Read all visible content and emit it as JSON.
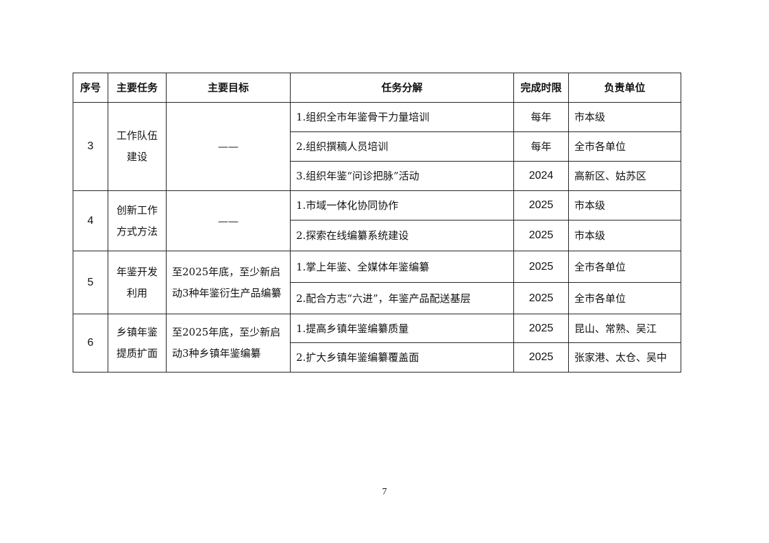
{
  "table": {
    "headers": [
      "序号",
      "主要任务",
      "主要目标",
      "任务分解",
      "完成时限",
      "负责单位"
    ],
    "groups": [
      {
        "no": "3",
        "task": "工作队伍建设",
        "target": "——",
        "items": [
          {
            "sub": "1.组织全市年鉴骨干力量培训",
            "deadline": "每年",
            "unit": "市本级"
          },
          {
            "sub": "2.组织撰稿人员培训",
            "deadline": "每年",
            "unit": "全市各单位"
          },
          {
            "sub": "3.组织年鉴“问诊把脉”活动",
            "deadline": "2024",
            "unit": "高新区、姑苏区"
          }
        ]
      },
      {
        "no": "4",
        "task": "创新工作方式方法",
        "target": "——",
        "items": [
          {
            "sub": "1.市域一体化协同协作",
            "deadline": "2025",
            "unit": "市本级"
          },
          {
            "sub": "2.探索在线编纂系统建设",
            "deadline": "2025",
            "unit": "市本级"
          }
        ]
      },
      {
        "no": "5",
        "task": "年鉴开发利用",
        "target": "至2025年底，至少新启动3种年鉴衍生产品编纂",
        "items": [
          {
            "sub": "1.掌上年鉴、全媒体年鉴编纂",
            "deadline": "2025",
            "unit": "全市各单位"
          },
          {
            "sub": "2.配合方志“六进”，年鉴产品配送基层",
            "deadline": "2025",
            "unit": "全市各单位"
          }
        ]
      },
      {
        "no": "6",
        "task": "乡镇年鉴提质扩面",
        "target": "至2025年底，至少新启动3种乡镇年鉴编纂",
        "items": [
          {
            "sub": "1.提高乡镇年鉴编纂质量",
            "deadline": "2025",
            "unit": "昆山、常熟、吴江"
          },
          {
            "sub": "2.扩大乡镇年鉴编纂覆盖面",
            "deadline": "2025",
            "unit": "张家港、太仓、吴中"
          }
        ]
      }
    ]
  },
  "page_number": "7"
}
